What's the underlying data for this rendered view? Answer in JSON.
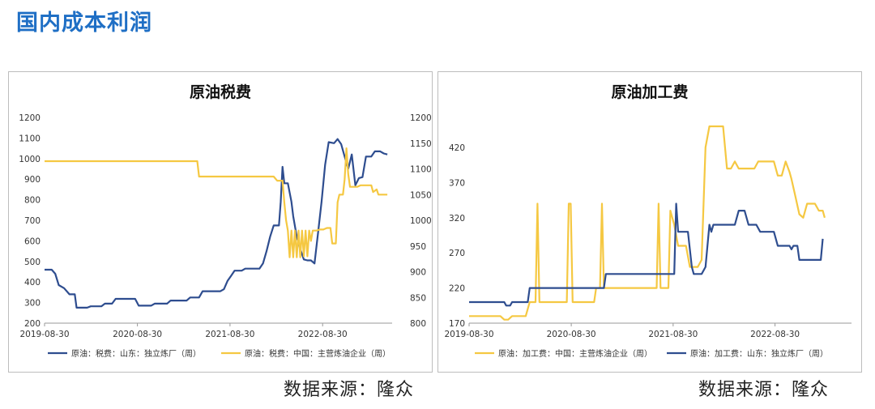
{
  "page_title": "国内成本利润",
  "source_label": "数据来源：隆众",
  "chart_data": [
    {
      "type": "line",
      "title": "原油税费",
      "x_ticks": [
        "2019-08-30",
        "2020-08-30",
        "2021-08-30",
        "2022-08-30"
      ],
      "x_range": [
        "2019-08-30",
        "2023-05-31"
      ],
      "y_left": {
        "min": 200,
        "max": 1200,
        "step": 100
      },
      "y_right": {
        "min": 800,
        "max": 1200,
        "step": 50
      },
      "grid": false,
      "legend_position": "bottom",
      "series": [
        {
          "name": "原油：税费：山东：独立炼厂（周）",
          "axis": "left",
          "color": "#2e4d8f",
          "points": [
            [
              "2019-08-30",
              460
            ],
            [
              "2019-09-27",
              460
            ],
            [
              "2019-10-11",
              440
            ],
            [
              "2019-10-25",
              385
            ],
            [
              "2019-11-15",
              370
            ],
            [
              "2019-12-06",
              340
            ],
            [
              "2019-12-27",
              340
            ],
            [
              "2020-01-03",
              275
            ],
            [
              "2020-02-14",
              275
            ],
            [
              "2020-02-28",
              282
            ],
            [
              "2020-04-10",
              282
            ],
            [
              "2020-04-24",
              295
            ],
            [
              "2020-05-22",
              295
            ],
            [
              "2020-06-05",
              318
            ],
            [
              "2020-08-21",
              318
            ],
            [
              "2020-09-04",
              285
            ],
            [
              "2020-10-23",
              285
            ],
            [
              "2020-11-06",
              295
            ],
            [
              "2020-12-25",
              295
            ],
            [
              "2021-01-08",
              310
            ],
            [
              "2021-03-12",
              310
            ],
            [
              "2021-03-26",
              325
            ],
            [
              "2021-04-30",
              325
            ],
            [
              "2021-05-14",
              355
            ],
            [
              "2021-07-23",
              355
            ],
            [
              "2021-08-06",
              365
            ],
            [
              "2021-08-20",
              405
            ],
            [
              "2021-09-03",
              430
            ],
            [
              "2021-09-17",
              455
            ],
            [
              "2021-10-15",
              455
            ],
            [
              "2021-10-29",
              465
            ],
            [
              "2021-12-24",
              465
            ],
            [
              "2022-01-07",
              490
            ],
            [
              "2022-01-21",
              550
            ],
            [
              "2022-02-04",
              620
            ],
            [
              "2022-02-18",
              675
            ],
            [
              "2022-03-11",
              675
            ],
            [
              "2022-03-18",
              790
            ],
            [
              "2022-03-25",
              960
            ],
            [
              "2022-04-01",
              880
            ],
            [
              "2022-04-15",
              880
            ],
            [
              "2022-04-29",
              790
            ],
            [
              "2022-05-06",
              720
            ],
            [
              "2022-05-20",
              620
            ],
            [
              "2022-06-03",
              560
            ],
            [
              "2022-06-17",
              510
            ],
            [
              "2022-07-01",
              505
            ],
            [
              "2022-07-15",
              505
            ],
            [
              "2022-07-29",
              490
            ],
            [
              "2022-08-12",
              640
            ],
            [
              "2022-08-26",
              790
            ],
            [
              "2022-09-09",
              970
            ],
            [
              "2022-09-23",
              1080
            ],
            [
              "2022-10-14",
              1075
            ],
            [
              "2022-10-28",
              1095
            ],
            [
              "2022-11-11",
              1070
            ],
            [
              "2022-11-25",
              1010
            ],
            [
              "2022-12-09",
              950
            ],
            [
              "2022-12-23",
              1020
            ],
            [
              "2023-01-06",
              870
            ],
            [
              "2023-01-20",
              905
            ],
            [
              "2023-02-03",
              910
            ],
            [
              "2023-02-17",
              1010
            ],
            [
              "2023-03-10",
              1010
            ],
            [
              "2023-03-24",
              1035
            ],
            [
              "2023-04-14",
              1035
            ],
            [
              "2023-04-28",
              1025
            ],
            [
              "2023-05-12",
              1020
            ]
          ]
        },
        {
          "name": "原油：税费：中国：主营炼油企业（周）",
          "axis": "right",
          "color": "#f5c842",
          "points": [
            [
              "2019-08-30",
              1115
            ],
            [
              "2021-04-23",
              1115
            ],
            [
              "2021-04-30",
              1085
            ],
            [
              "2022-02-18",
              1085
            ],
            [
              "2022-03-04",
              1077
            ],
            [
              "2022-03-25",
              1077
            ],
            [
              "2022-04-01",
              1035
            ],
            [
              "2022-04-08",
              1000
            ],
            [
              "2022-04-15",
              980
            ],
            [
              "2022-04-22",
              928
            ],
            [
              "2022-04-29",
              980
            ],
            [
              "2022-05-06",
              928
            ],
            [
              "2022-05-13",
              980
            ],
            [
              "2022-05-20",
              928
            ],
            [
              "2022-05-27",
              980
            ],
            [
              "2022-06-03",
              928
            ],
            [
              "2022-06-10",
              980
            ],
            [
              "2022-06-17",
              930
            ],
            [
              "2022-06-24",
              980
            ],
            [
              "2022-07-01",
              930
            ],
            [
              "2022-07-08",
              980
            ],
            [
              "2022-07-15",
              960
            ],
            [
              "2022-07-22",
              980
            ],
            [
              "2022-08-05",
              980
            ],
            [
              "2022-08-19",
              982
            ],
            [
              "2022-09-02",
              982
            ],
            [
              "2022-09-16",
              985
            ],
            [
              "2022-09-30",
              985
            ],
            [
              "2022-10-07",
              955
            ],
            [
              "2022-10-21",
              955
            ],
            [
              "2022-10-28",
              1035
            ],
            [
              "2022-11-04",
              1050
            ],
            [
              "2022-11-18",
              1050
            ],
            [
              "2022-11-25",
              1080
            ],
            [
              "2022-12-02",
              1140
            ],
            [
              "2022-12-09",
              1090
            ],
            [
              "2022-12-16",
              1065
            ],
            [
              "2023-01-13",
              1065
            ],
            [
              "2023-01-27",
              1068
            ],
            [
              "2023-03-10",
              1068
            ],
            [
              "2023-03-17",
              1055
            ],
            [
              "2023-03-31",
              1060
            ],
            [
              "2023-04-07",
              1050
            ],
            [
              "2023-05-12",
              1050
            ]
          ]
        }
      ]
    },
    {
      "type": "line",
      "title": "原油加工费",
      "x_ticks": [
        "2019-08-30",
        "2020-08-30",
        "2021-08-30",
        "2022-08-30"
      ],
      "x_range": [
        "2019-08-30",
        "2023-05-31"
      ],
      "y_left": {
        "min": 170,
        "max": 450,
        "ticks": [
          170,
          220,
          270,
          320,
          370,
          420
        ]
      },
      "grid": false,
      "legend_position": "bottom",
      "series": [
        {
          "name": "原油：加工费：中国：主营炼油企业（周）",
          "axis": "left",
          "color": "#f5c842",
          "points": [
            [
              "2019-08-30",
              180
            ],
            [
              "2019-12-20",
              180
            ],
            [
              "2020-01-03",
              175
            ],
            [
              "2020-01-17",
              175
            ],
            [
              "2020-01-31",
              180
            ],
            [
              "2020-03-20",
              180
            ],
            [
              "2020-04-03",
              200
            ],
            [
              "2020-04-24",
              200
            ],
            [
              "2020-05-01",
              340
            ],
            [
              "2020-05-08",
              200
            ],
            [
              "2020-08-14",
              200
            ],
            [
              "2020-08-21",
              340
            ],
            [
              "2020-08-28",
              340
            ],
            [
              "2020-09-04",
              200
            ],
            [
              "2020-11-20",
              200
            ],
            [
              "2020-11-27",
              220
            ],
            [
              "2020-12-11",
              220
            ],
            [
              "2020-12-18",
              340
            ],
            [
              "2020-12-25",
              220
            ],
            [
              "2021-07-02",
              220
            ],
            [
              "2021-07-09",
              340
            ],
            [
              "2021-07-16",
              220
            ],
            [
              "2021-08-13",
              220
            ],
            [
              "2021-08-20",
              330
            ],
            [
              "2021-09-03",
              310
            ],
            [
              "2021-09-17",
              280
            ],
            [
              "2021-10-15",
              280
            ],
            [
              "2021-10-29",
              250
            ],
            [
              "2021-11-26",
              250
            ],
            [
              "2021-12-10",
              260
            ],
            [
              "2021-12-24",
              420
            ],
            [
              "2022-01-07",
              450
            ],
            [
              "2022-02-25",
              450
            ],
            [
              "2022-03-11",
              390
            ],
            [
              "2022-03-25",
              390
            ],
            [
              "2022-04-08",
              400
            ],
            [
              "2022-04-22",
              390
            ],
            [
              "2022-06-17",
              390
            ],
            [
              "2022-07-01",
              400
            ],
            [
              "2022-08-26",
              400
            ],
            [
              "2022-09-09",
              380
            ],
            [
              "2022-09-23",
              380
            ],
            [
              "2022-10-07",
              400
            ],
            [
              "2022-10-21",
              385
            ],
            [
              "2022-10-28",
              375
            ],
            [
              "2022-11-11",
              350
            ],
            [
              "2022-11-25",
              325
            ],
            [
              "2022-12-09",
              320
            ],
            [
              "2022-12-23",
              340
            ],
            [
              "2023-01-20",
              340
            ],
            [
              "2023-02-03",
              330
            ],
            [
              "2023-02-17",
              330
            ],
            [
              "2023-02-24",
              320
            ]
          ]
        },
        {
          "name": "原油：加工费：山东：独立炼厂（周）",
          "axis": "left",
          "color": "#2e4d8f",
          "points": [
            [
              "2019-08-30",
              200
            ],
            [
              "2020-01-03",
              200
            ],
            [
              "2020-01-10",
              195
            ],
            [
              "2020-01-24",
              195
            ],
            [
              "2020-01-31",
              200
            ],
            [
              "2020-03-27",
              200
            ],
            [
              "2020-04-03",
              220
            ],
            [
              "2020-12-25",
              220
            ],
            [
              "2021-01-01",
              240
            ],
            [
              "2021-09-03",
              240
            ],
            [
              "2021-09-10",
              340
            ],
            [
              "2021-09-17",
              300
            ],
            [
              "2021-10-22",
              300
            ],
            [
              "2021-11-05",
              250
            ],
            [
              "2021-11-12",
              240
            ],
            [
              "2021-12-10",
              240
            ],
            [
              "2021-12-24",
              250
            ],
            [
              "2022-01-07",
              310
            ],
            [
              "2022-01-14",
              300
            ],
            [
              "2022-01-21",
              310
            ],
            [
              "2022-04-08",
              310
            ],
            [
              "2022-04-22",
              330
            ],
            [
              "2022-05-13",
              330
            ],
            [
              "2022-05-27",
              310
            ],
            [
              "2022-06-24",
              310
            ],
            [
              "2022-07-08",
              300
            ],
            [
              "2022-08-26",
              300
            ],
            [
              "2022-09-09",
              280
            ],
            [
              "2022-10-21",
              280
            ],
            [
              "2022-10-28",
              275
            ],
            [
              "2022-11-04",
              280
            ],
            [
              "2022-11-18",
              280
            ],
            [
              "2022-11-25",
              260
            ],
            [
              "2023-02-10",
              260
            ],
            [
              "2023-02-17",
              290
            ]
          ]
        }
      ]
    }
  ]
}
